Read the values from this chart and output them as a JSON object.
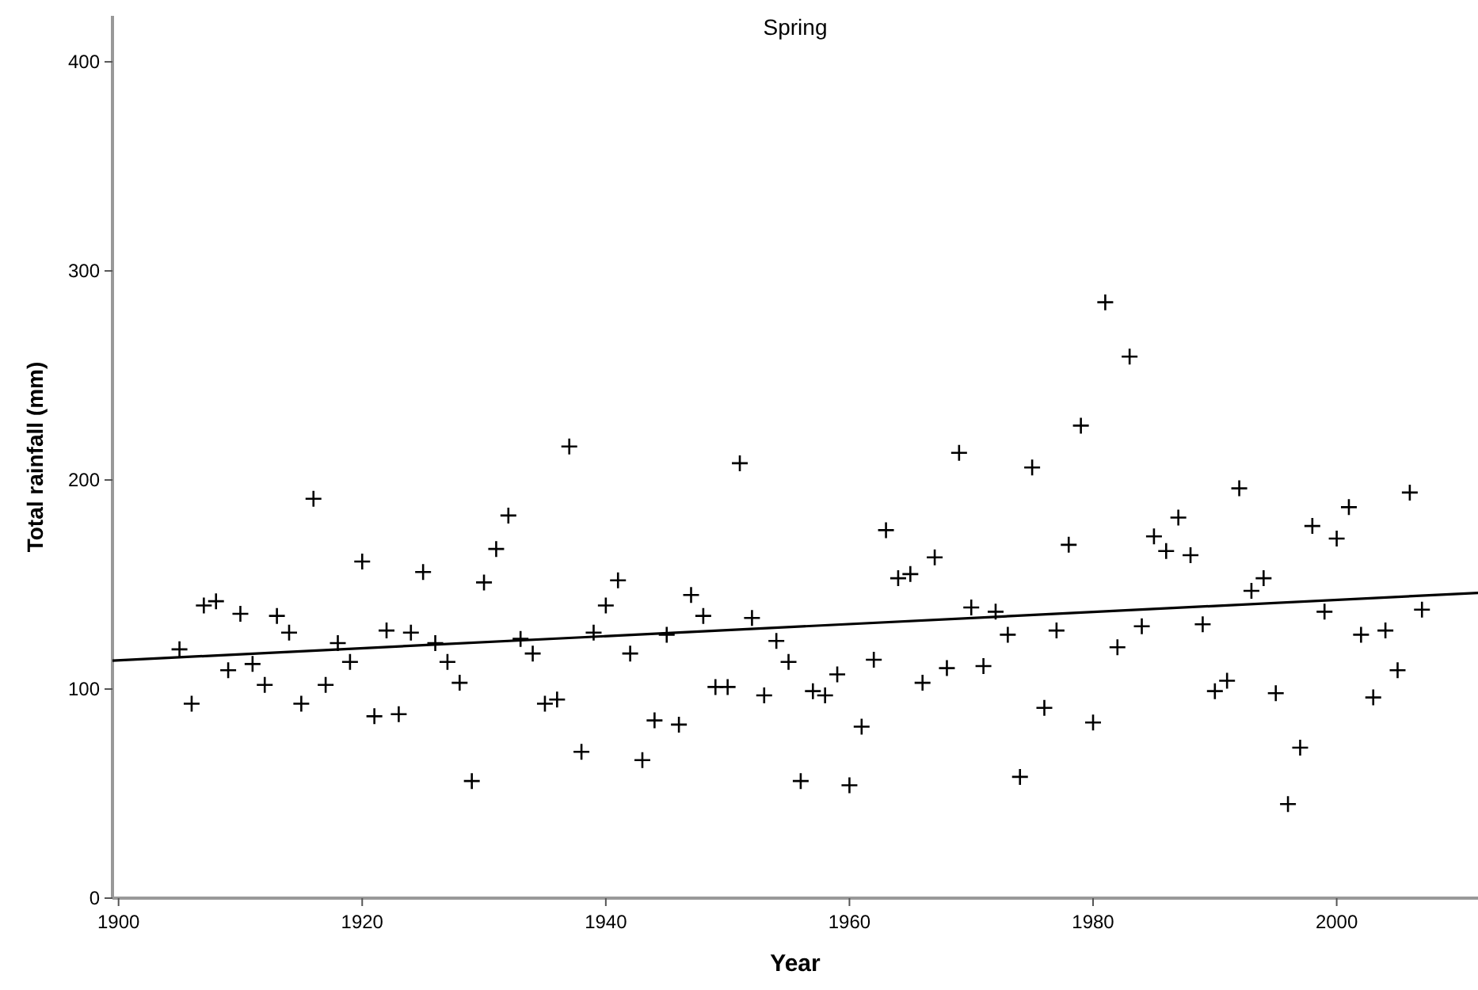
{
  "chart_data": {
    "type": "scatter",
    "title": "Spring",
    "xlabel": "Year",
    "ylabel": "Total rainfall (mm)",
    "xlim": [
      1899.5,
      2011.6
    ],
    "ylim": [
      0,
      422
    ],
    "xticks": [
      1900,
      1920,
      1940,
      1960,
      1980,
      2000
    ],
    "yticks": [
      0,
      100,
      200,
      300,
      400
    ],
    "grid": false,
    "marker": "cross",
    "series": [
      {
        "color": "#000000",
        "x": [
          1905,
          1906,
          1907,
          1908,
          1909,
          1910,
          1911,
          1912,
          1913,
          1914,
          1915,
          1916,
          1917,
          1918,
          1919,
          1920,
          1921,
          1922,
          1923,
          1924,
          1925,
          1926,
          1927,
          1928,
          1929,
          1930,
          1931,
          1932,
          1933,
          1934,
          1935,
          1936,
          1937,
          1938,
          1939,
          1940,
          1941,
          1942,
          1943,
          1944,
          1945,
          1946,
          1947,
          1948,
          1949,
          1950,
          1951,
          1952,
          1953,
          1954,
          1955,
          1956,
          1957,
          1958,
          1959,
          1960,
          1961,
          1962,
          1963,
          1964,
          1965,
          1966,
          1967,
          1968,
          1969,
          1970,
          1971,
          1972,
          1973,
          1974,
          1975,
          1976,
          1977,
          1978,
          1979,
          1980,
          1981,
          1982,
          1983,
          1984,
          1985,
          1986,
          1987,
          1988,
          1989,
          1990,
          1991,
          1992,
          1993,
          1994,
          1995,
          1996,
          1997,
          1998,
          1999,
          2000,
          2001,
          2002,
          2003,
          2004,
          2005,
          2006,
          2007
        ],
        "values": [
          119,
          93,
          140,
          142,
          109,
          136,
          112,
          102,
          135,
          127,
          93,
          191,
          102,
          122,
          113,
          161,
          87,
          128,
          88,
          127,
          156,
          122,
          113,
          103,
          56,
          151,
          167,
          183,
          124,
          117,
          93,
          95,
          216,
          70,
          127,
          140,
          152,
          117,
          66,
          85,
          126,
          83,
          145,
          135,
          101,
          101,
          208,
          134,
          97,
          123,
          113,
          56,
          99,
          97,
          107,
          54,
          82,
          114,
          176,
          153,
          155,
          103,
          163,
          110,
          213,
          139,
          111,
          137,
          126,
          58,
          206,
          91,
          128,
          169,
          226,
          84,
          285,
          120,
          259,
          130,
          173,
          166,
          182,
          164,
          131,
          99,
          104,
          196,
          147,
          153,
          98,
          45,
          72,
          178,
          137,
          172,
          187,
          126,
          96,
          128,
          109,
          194,
          138
        ]
      },
      {
        "type": "line",
        "color": "#000000",
        "marker": "none",
        "line_style": "solid",
        "x": [
          1899.5,
          2011.6
        ],
        "values": [
          113.6,
          146
        ]
      }
    ]
  }
}
